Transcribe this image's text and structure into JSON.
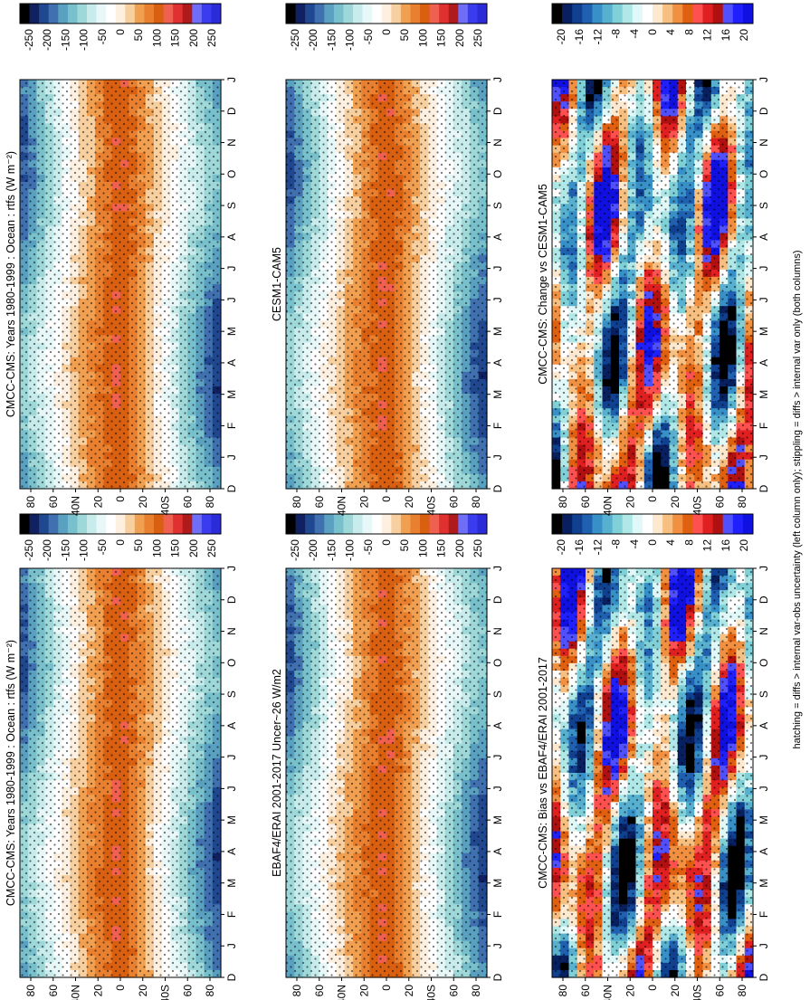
{
  "footer_text": "hatching = diffs > internal var-obs uncertainty (left column only); stippling = diffs > internal var only (both columns)",
  "chart_data": [
    {
      "type": "heatmap",
      "title": "CMCC-CMS: Years 1980-1999 : Ocean : rtfs (W m⁻²)",
      "x_ticks": [
        "D",
        "J",
        "F",
        "M",
        "A",
        "M",
        "J",
        "J",
        "A",
        "S",
        "O",
        "N",
        "D",
        "J"
      ],
      "y_ticks": [
        "80",
        "60",
        "40N",
        "20",
        "0",
        "20",
        "40S",
        "60",
        "80"
      ],
      "colorbar_labels": [
        "250",
        "200",
        "150",
        "100",
        "50",
        "0",
        "-50",
        "-100",
        "-150",
        "-200",
        "-250"
      ],
      "scale": "abs"
    },
    {
      "type": "heatmap",
      "title": "CMCC-CMS: Years 1980-1999 : Ocean : rtfs (W m⁻²)",
      "x_ticks": [
        "D",
        "J",
        "F",
        "M",
        "A",
        "M",
        "J",
        "J",
        "A",
        "S",
        "O",
        "N",
        "D",
        "J"
      ],
      "y_ticks": [
        "80",
        "60",
        "40N",
        "20",
        "0",
        "20",
        "40S",
        "60",
        "80"
      ],
      "colorbar_labels": [
        "250",
        "200",
        "150",
        "100",
        "50",
        "0",
        "-50",
        "-100",
        "-150",
        "-200",
        "-250"
      ],
      "scale": "abs"
    },
    {
      "type": "heatmap",
      "title": "EBAF4/ERAI 2001-2017 Uncer~26 W/m2",
      "x_ticks": [
        "D",
        "J",
        "F",
        "M",
        "A",
        "M",
        "J",
        "J",
        "A",
        "S",
        "O",
        "N",
        "D",
        "J"
      ],
      "y_ticks": [
        "80",
        "60",
        "40N",
        "20",
        "0",
        "20",
        "40S",
        "60",
        "80"
      ],
      "colorbar_labels": [
        "250",
        "200",
        "150",
        "100",
        "50",
        "0",
        "-50",
        "-100",
        "-150",
        "-200",
        "-250"
      ],
      "scale": "abs"
    },
    {
      "type": "heatmap",
      "title": "CESM1-CAM5",
      "x_ticks": [
        "D",
        "J",
        "F",
        "M",
        "A",
        "M",
        "J",
        "J",
        "A",
        "S",
        "O",
        "N",
        "D",
        "J"
      ],
      "y_ticks": [
        "80",
        "60",
        "40N",
        "20",
        "0",
        "20",
        "40S",
        "60",
        "80"
      ],
      "colorbar_labels": [
        "250",
        "200",
        "150",
        "100",
        "50",
        "0",
        "-50",
        "-100",
        "-150",
        "-200",
        "-250"
      ],
      "scale": "abs"
    },
    {
      "type": "heatmap",
      "title": "CMCC-CMS: Bias vs EBAF4/ERAI 2001-2017",
      "x_ticks": [
        "D",
        "J",
        "F",
        "M",
        "A",
        "M",
        "J",
        "J",
        "A",
        "S",
        "O",
        "N",
        "D",
        "J"
      ],
      "y_ticks": [
        "80",
        "60",
        "40N",
        "20",
        "0",
        "20",
        "40S",
        "60",
        "80"
      ],
      "colorbar_labels": [
        "20",
        "16",
        "12",
        "8",
        "4",
        "0",
        "-4",
        "-8",
        "-12",
        "-16",
        "-20"
      ],
      "scale": "diff"
    },
    {
      "type": "heatmap",
      "title": "CMCC-CMS: Change vs CESM1-CAM5",
      "x_ticks": [
        "D",
        "J",
        "F",
        "M",
        "A",
        "M",
        "J",
        "J",
        "A",
        "S",
        "O",
        "N",
        "D",
        "J"
      ],
      "y_ticks": [
        "80",
        "60",
        "40N",
        "20",
        "0",
        "20",
        "40S",
        "60",
        "80"
      ],
      "colorbar_labels": [
        "20",
        "16",
        "12",
        "8",
        "4",
        "0",
        "-4",
        "-8",
        "-12",
        "-16",
        "-20"
      ],
      "scale": "diff"
    }
  ],
  "colors": {
    "abs_scale": [
      "#2b2bd8",
      "#3b3bf0",
      "#6e6ef8",
      "#b01a1a",
      "#e03030",
      "#f06050",
      "#d86010",
      "#e88030",
      "#f0a050",
      "#f8d0a0",
      "#fdf0e0",
      "#ffffff",
      "#e8f8f8",
      "#c8ecec",
      "#9ed8d8",
      "#78c0cc",
      "#5aa0c0",
      "#4070b0",
      "#204890",
      "#102060",
      "#000000"
    ],
    "diff_scale": [
      "#1010e0",
      "#2020ff",
      "#5050ff",
      "#b01010",
      "#e02020",
      "#ff5050",
      "#e06010",
      "#f09040",
      "#f8c080",
      "#fde8d0",
      "#ffffff",
      "#e0f8f8",
      "#b0e8e8",
      "#80d0d8",
      "#58b0d0",
      "#3890c8",
      "#2060b0",
      "#104090",
      "#082060",
      "#000000"
    ]
  }
}
